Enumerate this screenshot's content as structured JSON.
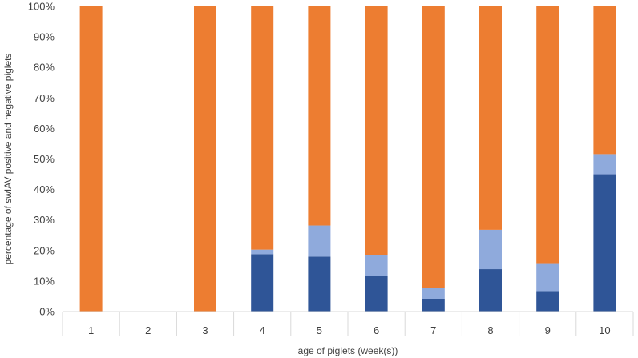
{
  "chart_data": {
    "type": "bar",
    "stacked": true,
    "percent_stacked": true,
    "categories": [
      "1",
      "2",
      "3",
      "4",
      "5",
      "6",
      "7",
      "8",
      "9",
      "10"
    ],
    "series": [
      {
        "color": "#2F5597",
        "values": [
          0,
          0,
          0,
          18.8,
          18.0,
          11.8,
          4.2,
          13.9,
          6.7,
          45.0
        ]
      },
      {
        "color": "#8FAADC",
        "values": [
          0,
          0,
          0,
          1.5,
          10.2,
          6.8,
          3.6,
          12.9,
          8.9,
          6.6
        ]
      },
      {
        "color": "#ED7D31",
        "values": [
          100,
          0,
          100,
          79.7,
          71.8,
          81.4,
          92.2,
          73.2,
          84.4,
          48.4
        ]
      }
    ],
    "xlabel": "age of piglets (week(s))",
    "ylabel": "percentage of swIAV positive and negative piglets",
    "ylim": [
      0,
      100
    ],
    "yticks": [
      "0%",
      "10%",
      "20%",
      "30%",
      "40%",
      "50%",
      "60%",
      "70%",
      "80%",
      "90%",
      "100%"
    ],
    "grid": false,
    "legend": "none"
  }
}
